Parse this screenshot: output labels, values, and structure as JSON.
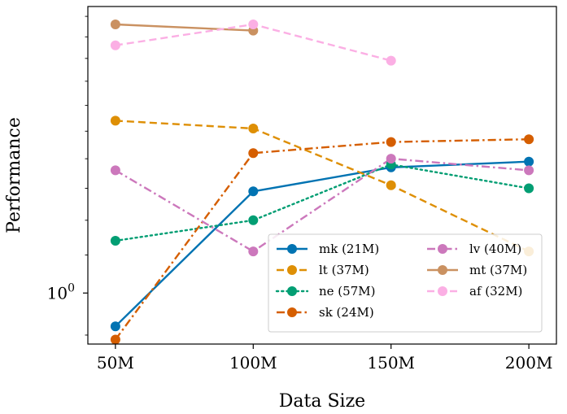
{
  "chart_data": {
    "type": "line",
    "title": "",
    "xlabel": "Data Size",
    "ylabel": "Performance",
    "yscale": "log",
    "x": [
      50,
      100,
      150,
      200
    ],
    "x_tick_labels": [
      "50M",
      "100M",
      "150M",
      "200M"
    ],
    "xlim": [
      40,
      210
    ],
    "ylim": [
      0.88,
      2.05
    ],
    "y_ticks": [
      {
        "value": 1.0,
        "base": "10",
        "exponent": "0"
      }
    ],
    "legend_position": "lower-right",
    "series": [
      {
        "name": "mk (21M)",
        "color": "#0173b2",
        "dash": "solid",
        "values": [
          0.92,
          1.29,
          1.37,
          1.39
        ]
      },
      {
        "name": "lt (37M)",
        "color": "#de8f05",
        "dash": "dashed",
        "values": [
          1.54,
          1.51,
          1.31,
          1.11
        ]
      },
      {
        "name": "ne (57M)",
        "color": "#029e73",
        "dash": "dotted",
        "values": [
          1.14,
          1.2,
          1.38,
          1.3
        ]
      },
      {
        "name": "sk (24M)",
        "color": "#d55e00",
        "dash": "dashdot",
        "values": [
          0.89,
          1.42,
          1.46,
          1.47
        ]
      },
      {
        "name": "lv (40M)",
        "color": "#cc78bc",
        "dash": "dashdot",
        "values": [
          1.36,
          1.11,
          1.4,
          1.36
        ]
      },
      {
        "name": "mt (37M)",
        "color": "#ca9161",
        "dash": "solid",
        "values": [
          1.96,
          1.93,
          null,
          null
        ]
      },
      {
        "name": "af (32M)",
        "color": "#fbafe4",
        "dash": "dashed",
        "values": [
          1.86,
          1.96,
          1.79,
          null
        ]
      }
    ]
  }
}
